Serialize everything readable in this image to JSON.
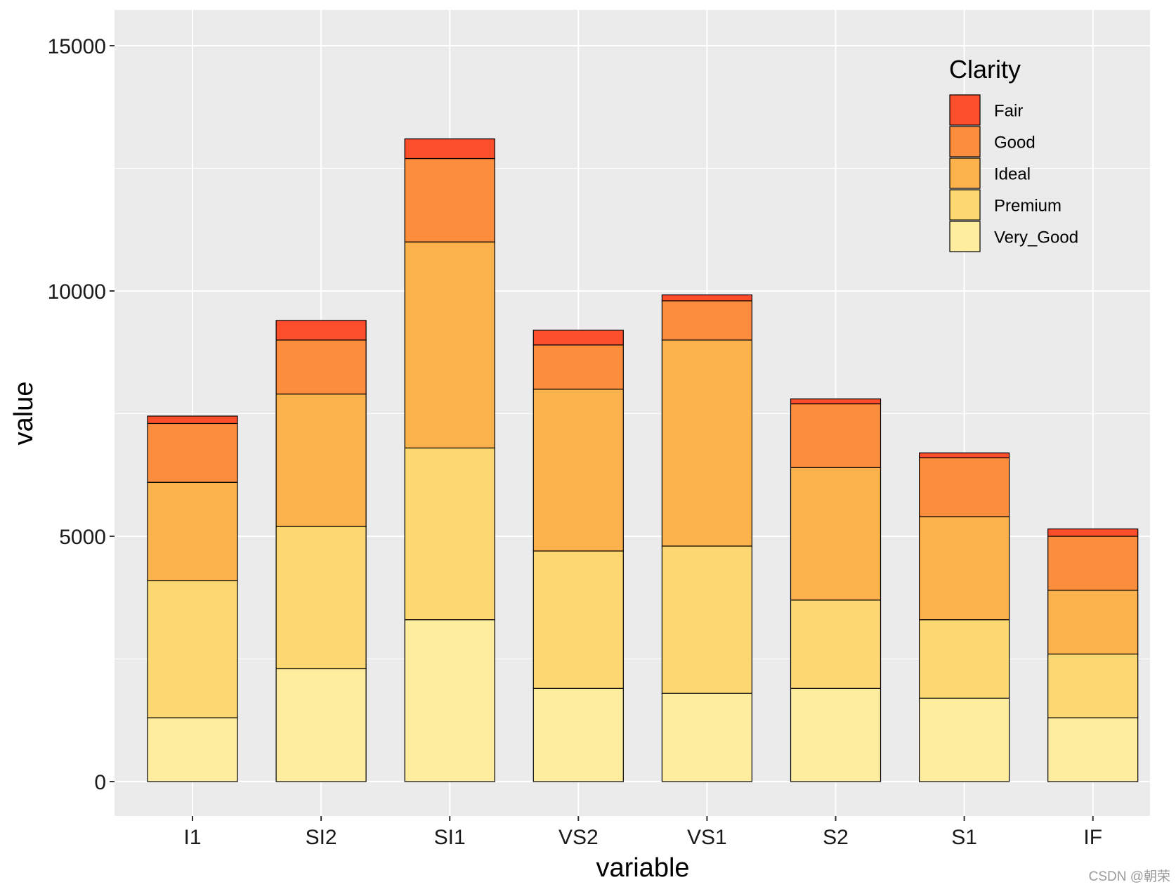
{
  "chart_data": {
    "type": "bar",
    "stacked": true,
    "categories": [
      "I1",
      "SI2",
      "SI1",
      "VS2",
      "VS1",
      "S2",
      "S1",
      "IF"
    ],
    "series": [
      {
        "name": "Very_Good",
        "color": "#FEEC9F",
        "values": [
          1300,
          2300,
          3300,
          1900,
          1800,
          1900,
          1700,
          1300
        ]
      },
      {
        "name": "Premium",
        "color": "#FDD772",
        "values": [
          2800,
          2900,
          3500,
          2800,
          3000,
          1800,
          1600,
          1300
        ]
      },
      {
        "name": "Ideal",
        "color": "#FCB24C",
        "values": [
          2000,
          2700,
          4200,
          3300,
          4200,
          2700,
          2100,
          1300
        ]
      },
      {
        "name": "Good",
        "color": "#FC8D3D",
        "values": [
          1200,
          1100,
          1700,
          900,
          800,
          1300,
          1200,
          1100
        ]
      },
      {
        "name": "Fair",
        "color": "#FC4E2B",
        "values": [
          150,
          400,
          400,
          300,
          120,
          100,
          100,
          150
        ]
      }
    ],
    "xlabel": "variable",
    "ylabel": "value",
    "ylim": [
      -750,
      15750
    ],
    "yticks": [
      0,
      5000,
      10000,
      15000
    ],
    "ytick_labels": [
      "0",
      "5000",
      "10000",
      "15000"
    ],
    "grid": true,
    "legend": {
      "title": "Clarity",
      "placement": "top-right",
      "order": [
        "Fair",
        "Good",
        "Ideal",
        "Premium",
        "Very_Good"
      ]
    }
  },
  "watermark": "CSDN @朝荣",
  "colors": {
    "panel_background": "#EBEBEB",
    "grid": "#FFFFFF",
    "bar_outline": "#000000"
  }
}
